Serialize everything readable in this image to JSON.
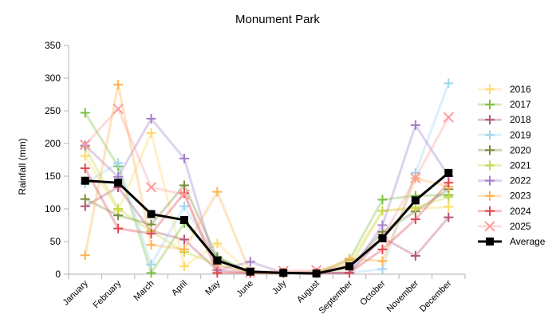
{
  "chart_data": {
    "type": "line",
    "title": "Monument Park",
    "xlabel": "",
    "ylabel": "Rainfall (mm)",
    "ylim": [
      0,
      350
    ],
    "y_ticks": [
      0,
      50,
      100,
      150,
      200,
      250,
      300,
      350
    ],
    "grid": false,
    "legend_position": "right",
    "categories": [
      "January",
      "February",
      "March",
      "April",
      "May",
      "June",
      "July",
      "August",
      "September",
      "October",
      "November",
      "December"
    ],
    "series": [
      {
        "name": "2016",
        "color": "#ffd966",
        "marker": "plus",
        "values": [
          181,
          97,
          216,
          12,
          47,
          2,
          2,
          2,
          18,
          97,
          100,
          103
        ]
      },
      {
        "name": "2017",
        "color": "#7bc142",
        "marker": "plus",
        "values": [
          247,
          165,
          2,
          78,
          27,
          2,
          2,
          2,
          22,
          114,
          120,
          121
        ]
      },
      {
        "name": "2018",
        "color": "#b5547a",
        "marker": "plus",
        "values": [
          104,
          133,
          66,
          53,
          6,
          2,
          2,
          2,
          2,
          56,
          28,
          87
        ]
      },
      {
        "name": "2019",
        "color": "#9fd3f0",
        "marker": "plus",
        "values": [
          139,
          170,
          15,
          104,
          22,
          2,
          2,
          2,
          2,
          8,
          155,
          292
        ]
      },
      {
        "name": "2020",
        "color": "#7a8a3c",
        "marker": "plus",
        "values": [
          115,
          90,
          76,
          136,
          25,
          2,
          2,
          2,
          10,
          65,
          96,
          130
        ]
      },
      {
        "name": "2021",
        "color": "#c5d94a",
        "marker": "plus",
        "values": [
          195,
          100,
          66,
          34,
          15,
          2,
          2,
          2,
          10,
          97,
          102,
          118
        ]
      },
      {
        "name": "2022",
        "color": "#a37fc9",
        "marker": "plus",
        "values": [
          197,
          149,
          238,
          177,
          6,
          19,
          2,
          2,
          2,
          75,
          228,
          150
        ]
      },
      {
        "name": "2023",
        "color": "#ffb24d",
        "marker": "plus",
        "values": [
          29,
          290,
          45,
          38,
          126,
          2,
          2,
          2,
          24,
          20,
          147,
          134
        ]
      },
      {
        "name": "2024",
        "color": "#e0484f",
        "marker": "plus",
        "values": [
          162,
          70,
          62,
          124,
          2,
          2,
          2,
          2,
          2,
          38,
          84,
          140
        ]
      },
      {
        "name": "2025",
        "color": "#ff9a9a",
        "marker": "x",
        "values": [
          198,
          253,
          133,
          122,
          13,
          3,
          5,
          6,
          14,
          55,
          147,
          240
        ]
      },
      {
        "name": "Average",
        "color": "#000000",
        "marker": "square",
        "values": [
          143,
          140,
          92,
          83,
          21,
          4,
          2,
          1,
          12,
          55,
          113,
          155
        ]
      }
    ]
  }
}
